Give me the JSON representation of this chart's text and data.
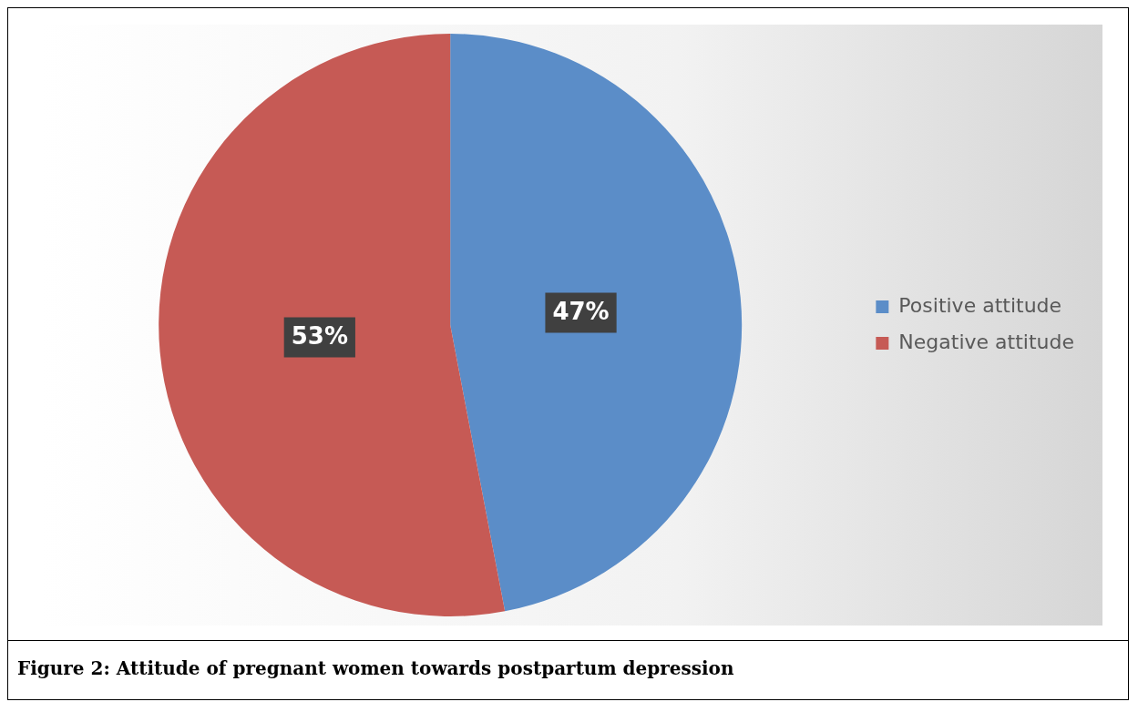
{
  "chart_data": {
    "type": "pie",
    "title": "Figure 2: Attitude of pregnant women towards postpartum depression",
    "categories": [
      "Positive attitude",
      "Negative attitude"
    ],
    "values": [
      47,
      53
    ],
    "colors": [
      "#5b8dc8",
      "#c65a55"
    ],
    "value_labels": [
      "47%",
      "53%"
    ],
    "legend": "right"
  }
}
